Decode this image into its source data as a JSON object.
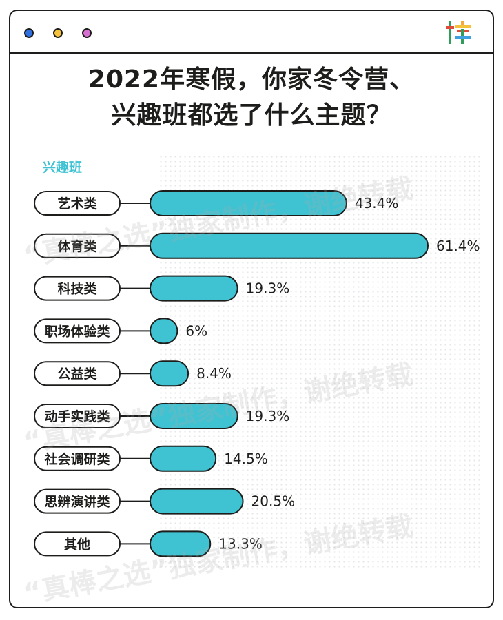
{
  "header": {
    "title_line1": "2022年寒假，你家冬令营、",
    "title_line2": "兴趣班都选了什么主题？",
    "logo_icon": "bang-logo-icon",
    "dots": [
      "#2f6fe0",
      "#f4c23a",
      "#d66fd0"
    ]
  },
  "colors": {
    "bar_fill": "#3fc3d3",
    "outline": "#1d1d1b",
    "accent": "#3fc3d3"
  },
  "watermark": "“真棒之选”独家制作，谢绝转载",
  "chart_data": {
    "type": "bar",
    "orientation": "horizontal",
    "subtitle": "兴趣班",
    "categories": [
      "艺术类",
      "体育类",
      "科技类",
      "职场体验类",
      "公益类",
      "动手实践类",
      "社会调研类",
      "思辨演讲类",
      "其他"
    ],
    "values": [
      43.4,
      61.4,
      19.3,
      6,
      8.4,
      19.3,
      14.5,
      20.5,
      13.3
    ],
    "labels": [
      "43.4%",
      "61.4%",
      "19.3%",
      "6%",
      "8.4%",
      "19.3%",
      "14.5%",
      "20.5%",
      "13.3%"
    ],
    "unit": "%",
    "xlim": [
      0,
      61.4
    ]
  }
}
